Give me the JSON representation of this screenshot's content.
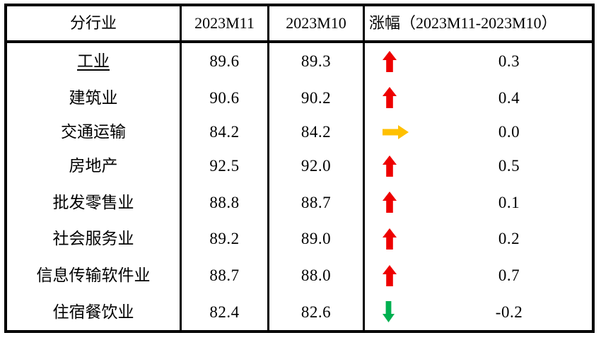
{
  "table": {
    "headers": {
      "industry": "分行业",
      "m11": "2023M11",
      "m10": "2023M10",
      "change": "涨幅（2023M11-2023M10）"
    },
    "rows": [
      {
        "industry": "工业",
        "m11": "89.6",
        "m10": "89.3",
        "direction": "up",
        "change": "0.3"
      },
      {
        "industry": "建筑业",
        "m11": "90.6",
        "m10": "90.2",
        "direction": "up",
        "change": "0.4"
      },
      {
        "industry": "交通运输",
        "m11": "84.2",
        "m10": "84.2",
        "direction": "flat",
        "change": "0.0"
      },
      {
        "industry": "房地产",
        "m11": "92.5",
        "m10": "92.0",
        "direction": "up",
        "change": "0.5"
      },
      {
        "industry": "批发零售业",
        "m11": "88.8",
        "m10": "88.7",
        "direction": "up",
        "change": "0.1"
      },
      {
        "industry": "社会服务业",
        "m11": "89.2",
        "m10": "89.0",
        "direction": "up",
        "change": "0.2"
      },
      {
        "industry": "信息传输软件业",
        "m11": "88.7",
        "m10": "88.0",
        "direction": "up",
        "change": "0.7"
      },
      {
        "industry": "住宿餐饮业",
        "m11": "82.4",
        "m10": "82.6",
        "direction": "down",
        "change": "-0.2"
      }
    ]
  },
  "arrow_colors": {
    "up": "#ee0000",
    "flat": "#ffc000",
    "down": "#00b050"
  },
  "border_color": "#000000",
  "chart_data": {
    "type": "table",
    "title": "",
    "columns": [
      "分行业",
      "2023M11",
      "2023M10",
      "涨幅（2023M11-2023M10）"
    ],
    "rows": [
      [
        "工业",
        89.6,
        89.3,
        0.3
      ],
      [
        "建筑业",
        90.6,
        90.2,
        0.4
      ],
      [
        "交通运输",
        84.2,
        84.2,
        0.0
      ],
      [
        "房地产",
        92.5,
        92.0,
        0.5
      ],
      [
        "批发零售业",
        88.8,
        88.7,
        0.1
      ],
      [
        "社会服务业",
        89.2,
        89.0,
        0.2
      ],
      [
        "信息传输软件业",
        88.7,
        88.0,
        0.7
      ],
      [
        "住宿餐饮业",
        82.4,
        82.6,
        -0.2
      ]
    ],
    "change_indicators": [
      "up",
      "up",
      "flat",
      "up",
      "up",
      "up",
      "up",
      "down"
    ],
    "legend_position": "none",
    "grid": "table-borders"
  }
}
